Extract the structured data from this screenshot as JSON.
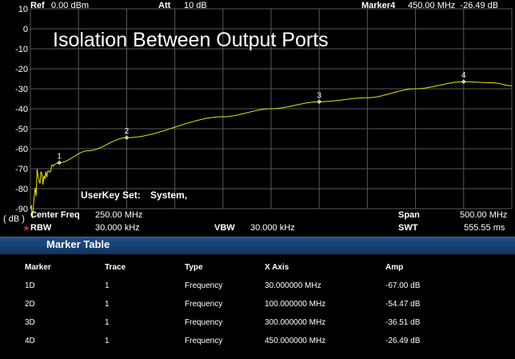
{
  "header": {
    "ref_label": "Ref",
    "ref_value": "0.00 dBm",
    "att_label": "Att",
    "att_value": "10 dB",
    "marker_label": "Marker4",
    "marker_value": "450.00 MHz  -26.49 dB"
  },
  "plot": {
    "title": "Isolation Between Output Ports",
    "userkey_label": "UserKey Set:",
    "userkey_value": "System,",
    "unit_label": "( dB )",
    "y_ticks": [
      "10",
      "0",
      "-10",
      "-20",
      "-30",
      "-40",
      "-50",
      "-60",
      "-70",
      "-80",
      "-90"
    ],
    "markers": [
      {
        "label": "1",
        "freq_mhz": 30,
        "amp_db": -67.0
      },
      {
        "label": "2",
        "freq_mhz": 100,
        "amp_db": -54.47
      },
      {
        "label": "3",
        "freq_mhz": 300,
        "amp_db": -36.51
      },
      {
        "label": "4",
        "freq_mhz": 450,
        "amp_db": -26.49
      }
    ],
    "trace_color": "#e8e800",
    "grid_color": "#5a5a5a"
  },
  "footer": {
    "center_label": "Center Freq",
    "center_value": "250.00 MHz",
    "span_label": "Span",
    "span_value": "500.00 MHz",
    "rbw_label": "RBW",
    "rbw_value": "30.000 kHz",
    "vbw_label": "VBW",
    "vbw_value": "30.000 kHz",
    "swt_label": "SWT",
    "swt_value": "555.55 ms"
  },
  "marker_table": {
    "title": "Marker Table",
    "columns": [
      "Marker",
      "Trace",
      "Type",
      "X Axis",
      "Amp"
    ],
    "rows": [
      [
        "1D",
        "1",
        "Frequency",
        "30.000000 MHz",
        "-67.00 dB"
      ],
      [
        "2D",
        "1",
        "Frequency",
        "100.000000 MHz",
        "-54.47 dB"
      ],
      [
        "3D",
        "1",
        "Frequency",
        "300.000000 MHz",
        "-36.51 dB"
      ],
      [
        "4D",
        "1",
        "Frequency",
        "450.000000 MHz",
        "-26.49 dB"
      ]
    ]
  }
}
